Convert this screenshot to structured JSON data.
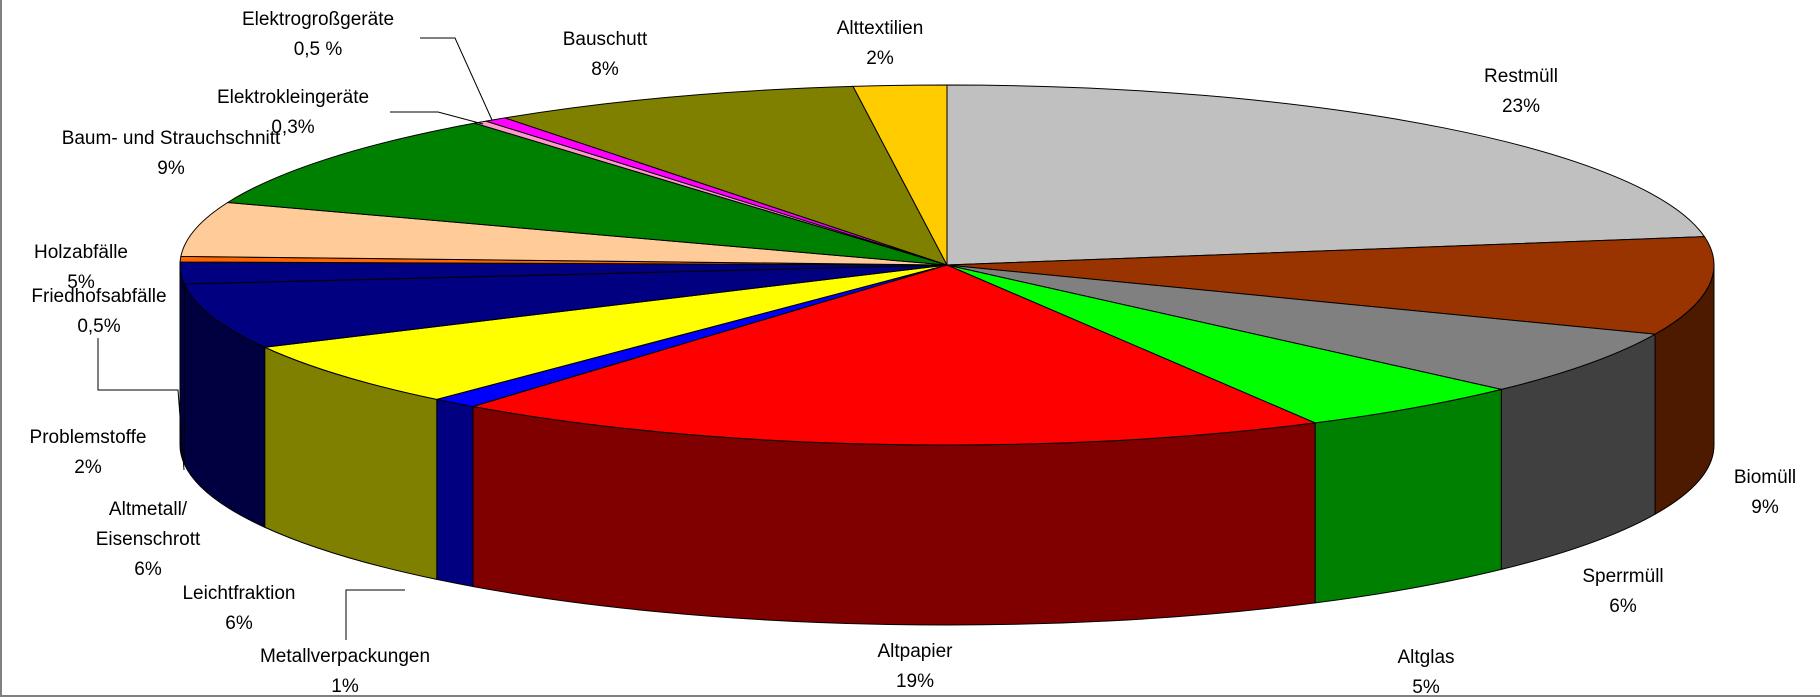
{
  "chart_data": {
    "type": "pie3d",
    "categories": [
      "Restmüll",
      "Biomüll",
      "Sperrmüll",
      "Altglas",
      "Altpapier",
      "Metallverpackungen",
      "Leichtfraktion",
      "Altmetall/\nEisenschrott",
      "Problemstoffe",
      "Friedhofsabfälle",
      "Holzabfälle",
      "Baum- und Strauchschnitt",
      "Elektrokleingeräte",
      "Elektrogroßgeräte",
      "Bauschutt",
      "Alttextilien"
    ],
    "values": [
      23,
      9,
      6,
      5,
      19,
      1,
      6,
      6,
      2,
      0.5,
      5,
      9,
      0.3,
      0.5,
      8,
      2
    ],
    "value_labels": [
      "23%",
      "9%",
      "6%",
      "5%",
      "19%",
      "1%",
      "6%",
      "6%",
      "2%",
      "0,5%",
      "5%",
      "9%",
      "0,3%",
      "0,5 %",
      "8%",
      "2%"
    ],
    "colors": [
      "#c0c0c0",
      "#993300",
      "#808080",
      "#00ff00",
      "#ff0000",
      "#0000ff",
      "#ffff00",
      "#000080",
      "#000080",
      "#ff6600",
      "#ffcc99",
      "#008000",
      "#ff99cc",
      "#ff00ff",
      "#808000",
      "#ffcc00"
    ]
  }
}
